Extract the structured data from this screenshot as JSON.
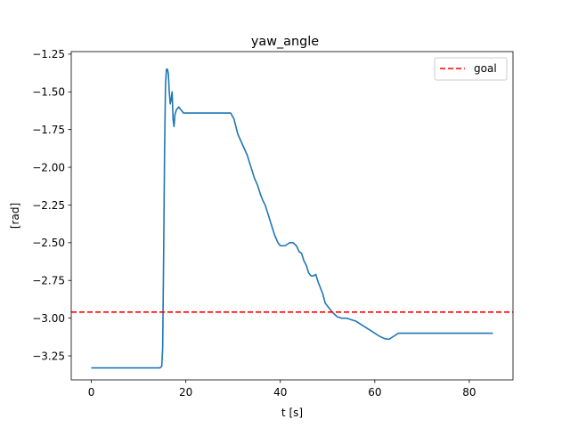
{
  "chart_data": {
    "type": "line",
    "title": "yaw_angle",
    "xlabel": "t [s]",
    "ylabel": "[rad]",
    "xlim": [
      -4.25,
      89.25
    ],
    "ylim": [
      -3.409,
      -1.233
    ],
    "xticks": [
      0,
      20,
      40,
      60,
      80
    ],
    "xtick_labels": [
      "0",
      "20",
      "40",
      "60",
      "80"
    ],
    "yticks": [
      -3.25,
      -3.0,
      -2.75,
      -2.5,
      -2.25,
      -2.0,
      -1.75,
      -1.5,
      -1.25
    ],
    "ytick_labels": [
      "−3.25",
      "−3.00",
      "−2.75",
      "−2.50",
      "−2.25",
      "−2.00",
      "−1.75",
      "−1.50",
      "−1.25"
    ],
    "grid": false,
    "legend_position": "top-right",
    "series": [
      {
        "name": "",
        "color": "#1f77b4",
        "style": "solid",
        "points": [
          [
            0,
            -3.33
          ],
          [
            5,
            -3.33
          ],
          [
            10,
            -3.33
          ],
          [
            14.5,
            -3.33
          ],
          [
            14.9,
            -3.32
          ],
          [
            15.1,
            -3.2
          ],
          [
            15.3,
            -2.6
          ],
          [
            15.5,
            -1.9
          ],
          [
            15.7,
            -1.45
          ],
          [
            15.9,
            -1.35
          ],
          [
            16.1,
            -1.35
          ],
          [
            16.3,
            -1.38
          ],
          [
            16.5,
            -1.5
          ],
          [
            16.7,
            -1.58
          ],
          [
            16.9,
            -1.55
          ],
          [
            17.1,
            -1.5
          ],
          [
            17.3,
            -1.68
          ],
          [
            17.5,
            -1.73
          ],
          [
            17.7,
            -1.65
          ],
          [
            18.0,
            -1.62
          ],
          [
            18.5,
            -1.6
          ],
          [
            19.0,
            -1.62
          ],
          [
            19.5,
            -1.64
          ],
          [
            20,
            -1.64
          ],
          [
            22,
            -1.64
          ],
          [
            24,
            -1.64
          ],
          [
            26,
            -1.64
          ],
          [
            28,
            -1.64
          ],
          [
            29.5,
            -1.64
          ],
          [
            30.2,
            -1.68
          ],
          [
            31,
            -1.78
          ],
          [
            32,
            -1.85
          ],
          [
            33,
            -1.92
          ],
          [
            33.8,
            -2.0
          ],
          [
            34.5,
            -2.07
          ],
          [
            35.2,
            -2.12
          ],
          [
            35.8,
            -2.18
          ],
          [
            36.3,
            -2.22
          ],
          [
            36.8,
            -2.25
          ],
          [
            37.3,
            -2.3
          ],
          [
            37.8,
            -2.35
          ],
          [
            38.3,
            -2.4
          ],
          [
            38.8,
            -2.45
          ],
          [
            39.5,
            -2.5
          ],
          [
            40,
            -2.52
          ],
          [
            41,
            -2.52
          ],
          [
            42,
            -2.5
          ],
          [
            42.7,
            -2.5
          ],
          [
            43.4,
            -2.52
          ],
          [
            44.0,
            -2.56
          ],
          [
            44.5,
            -2.57
          ],
          [
            45.0,
            -2.62
          ],
          [
            45.5,
            -2.65
          ],
          [
            46.0,
            -2.7
          ],
          [
            46.5,
            -2.72
          ],
          [
            47.0,
            -2.72
          ],
          [
            47.5,
            -2.71
          ],
          [
            48.0,
            -2.76
          ],
          [
            48.5,
            -2.8
          ],
          [
            49,
            -2.84
          ],
          [
            49.5,
            -2.9
          ],
          [
            50,
            -2.92
          ],
          [
            50.5,
            -2.94
          ],
          [
            51,
            -2.96
          ],
          [
            52,
            -2.99
          ],
          [
            53,
            -3.0
          ],
          [
            54,
            -3.0
          ],
          [
            55,
            -3.01
          ],
          [
            56,
            -3.02
          ],
          [
            57,
            -3.04
          ],
          [
            58,
            -3.06
          ],
          [
            59,
            -3.08
          ],
          [
            60,
            -3.1
          ],
          [
            61,
            -3.12
          ],
          [
            62,
            -3.135
          ],
          [
            63,
            -3.14
          ],
          [
            64,
            -3.12
          ],
          [
            65,
            -3.1
          ],
          [
            70,
            -3.1
          ],
          [
            75,
            -3.1
          ],
          [
            80,
            -3.1
          ],
          [
            85,
            -3.1
          ]
        ]
      },
      {
        "name": "goal",
        "color": "#ff0000",
        "style": "dashed",
        "hline": -2.96
      }
    ]
  }
}
